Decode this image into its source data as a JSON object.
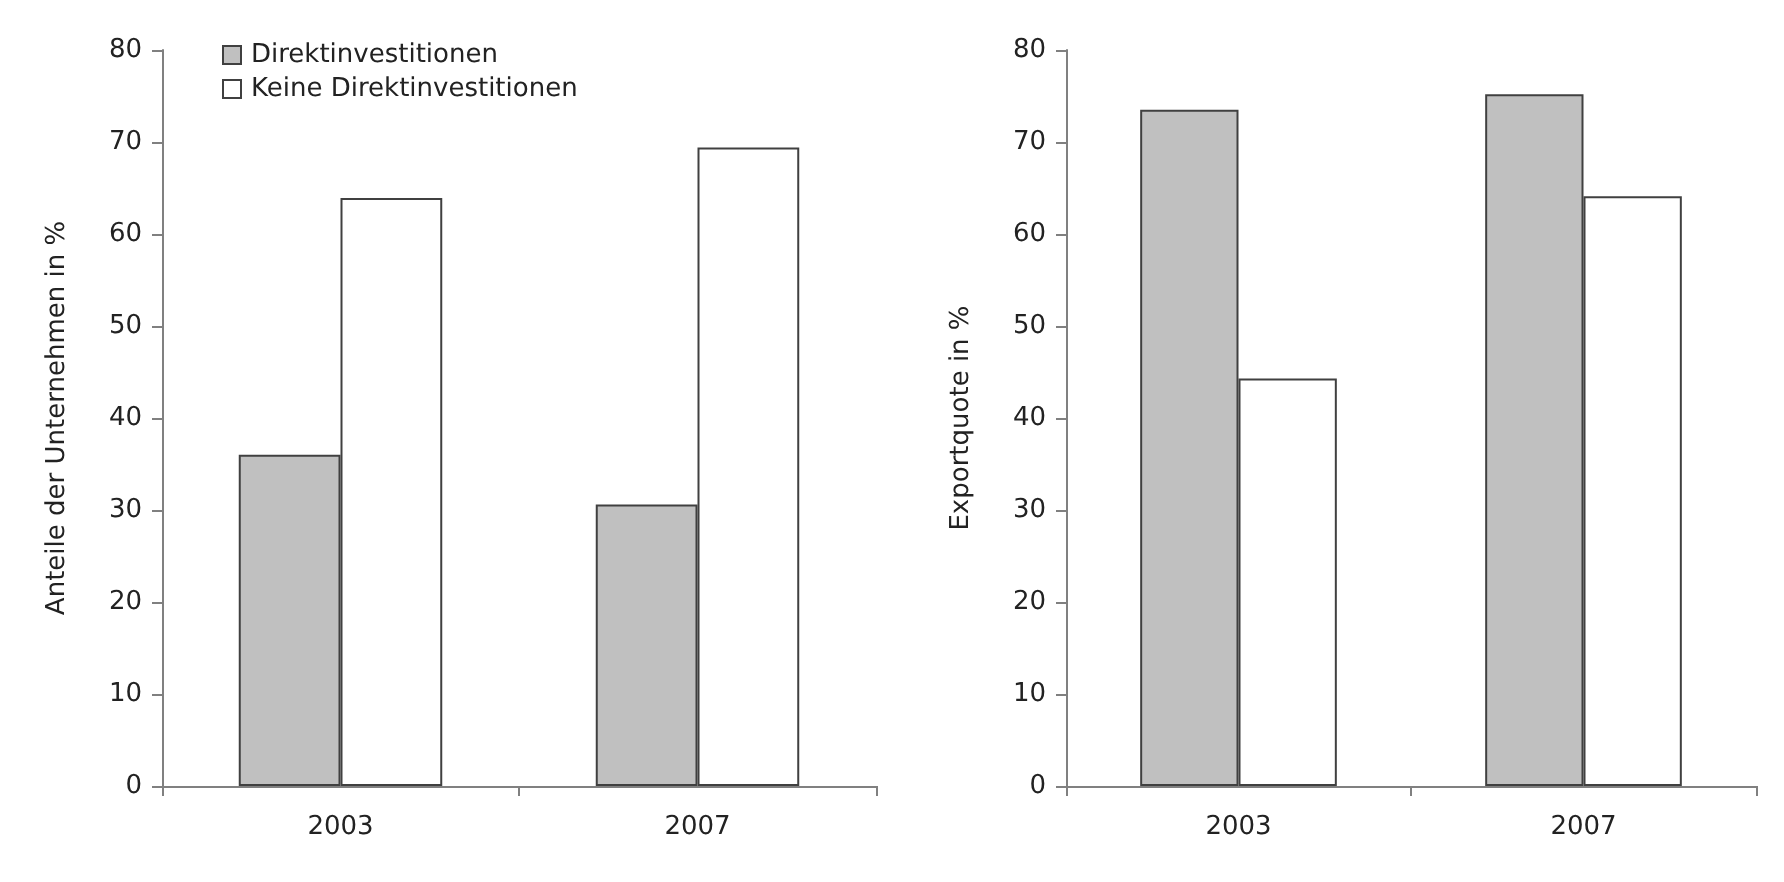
{
  "chart_data": [
    {
      "type": "bar",
      "ylabel": "Anteile der Unternehmen in %",
      "categories": [
        "2003",
        "2007"
      ],
      "series": [
        {
          "name": "Direktinvestitionen",
          "color": "#c0c0c0",
          "values": [
            36.0,
            30.6
          ]
        },
        {
          "name": "Keine Direktinvestitionen",
          "color": "#ffffff",
          "values": [
            63.9,
            69.4
          ]
        }
      ],
      "ylim": [
        0,
        80
      ],
      "yticks": [
        0,
        10,
        20,
        30,
        40,
        50,
        60,
        70,
        80
      ],
      "grid": false,
      "legend": "top left"
    },
    {
      "type": "bar",
      "ylabel": "Exportquote in %",
      "categories": [
        "2003",
        "2007"
      ],
      "series": [
        {
          "color": "#c0c0c0",
          "values": [
            73.5,
            75.2
          ]
        },
        {
          "color": "#ffffff",
          "values": [
            44.3,
            64.1
          ]
        }
      ],
      "ylim": [
        0,
        80
      ],
      "yticks": [
        0,
        10,
        20,
        30,
        40,
        50,
        60,
        70,
        80
      ],
      "grid": false
    }
  ]
}
